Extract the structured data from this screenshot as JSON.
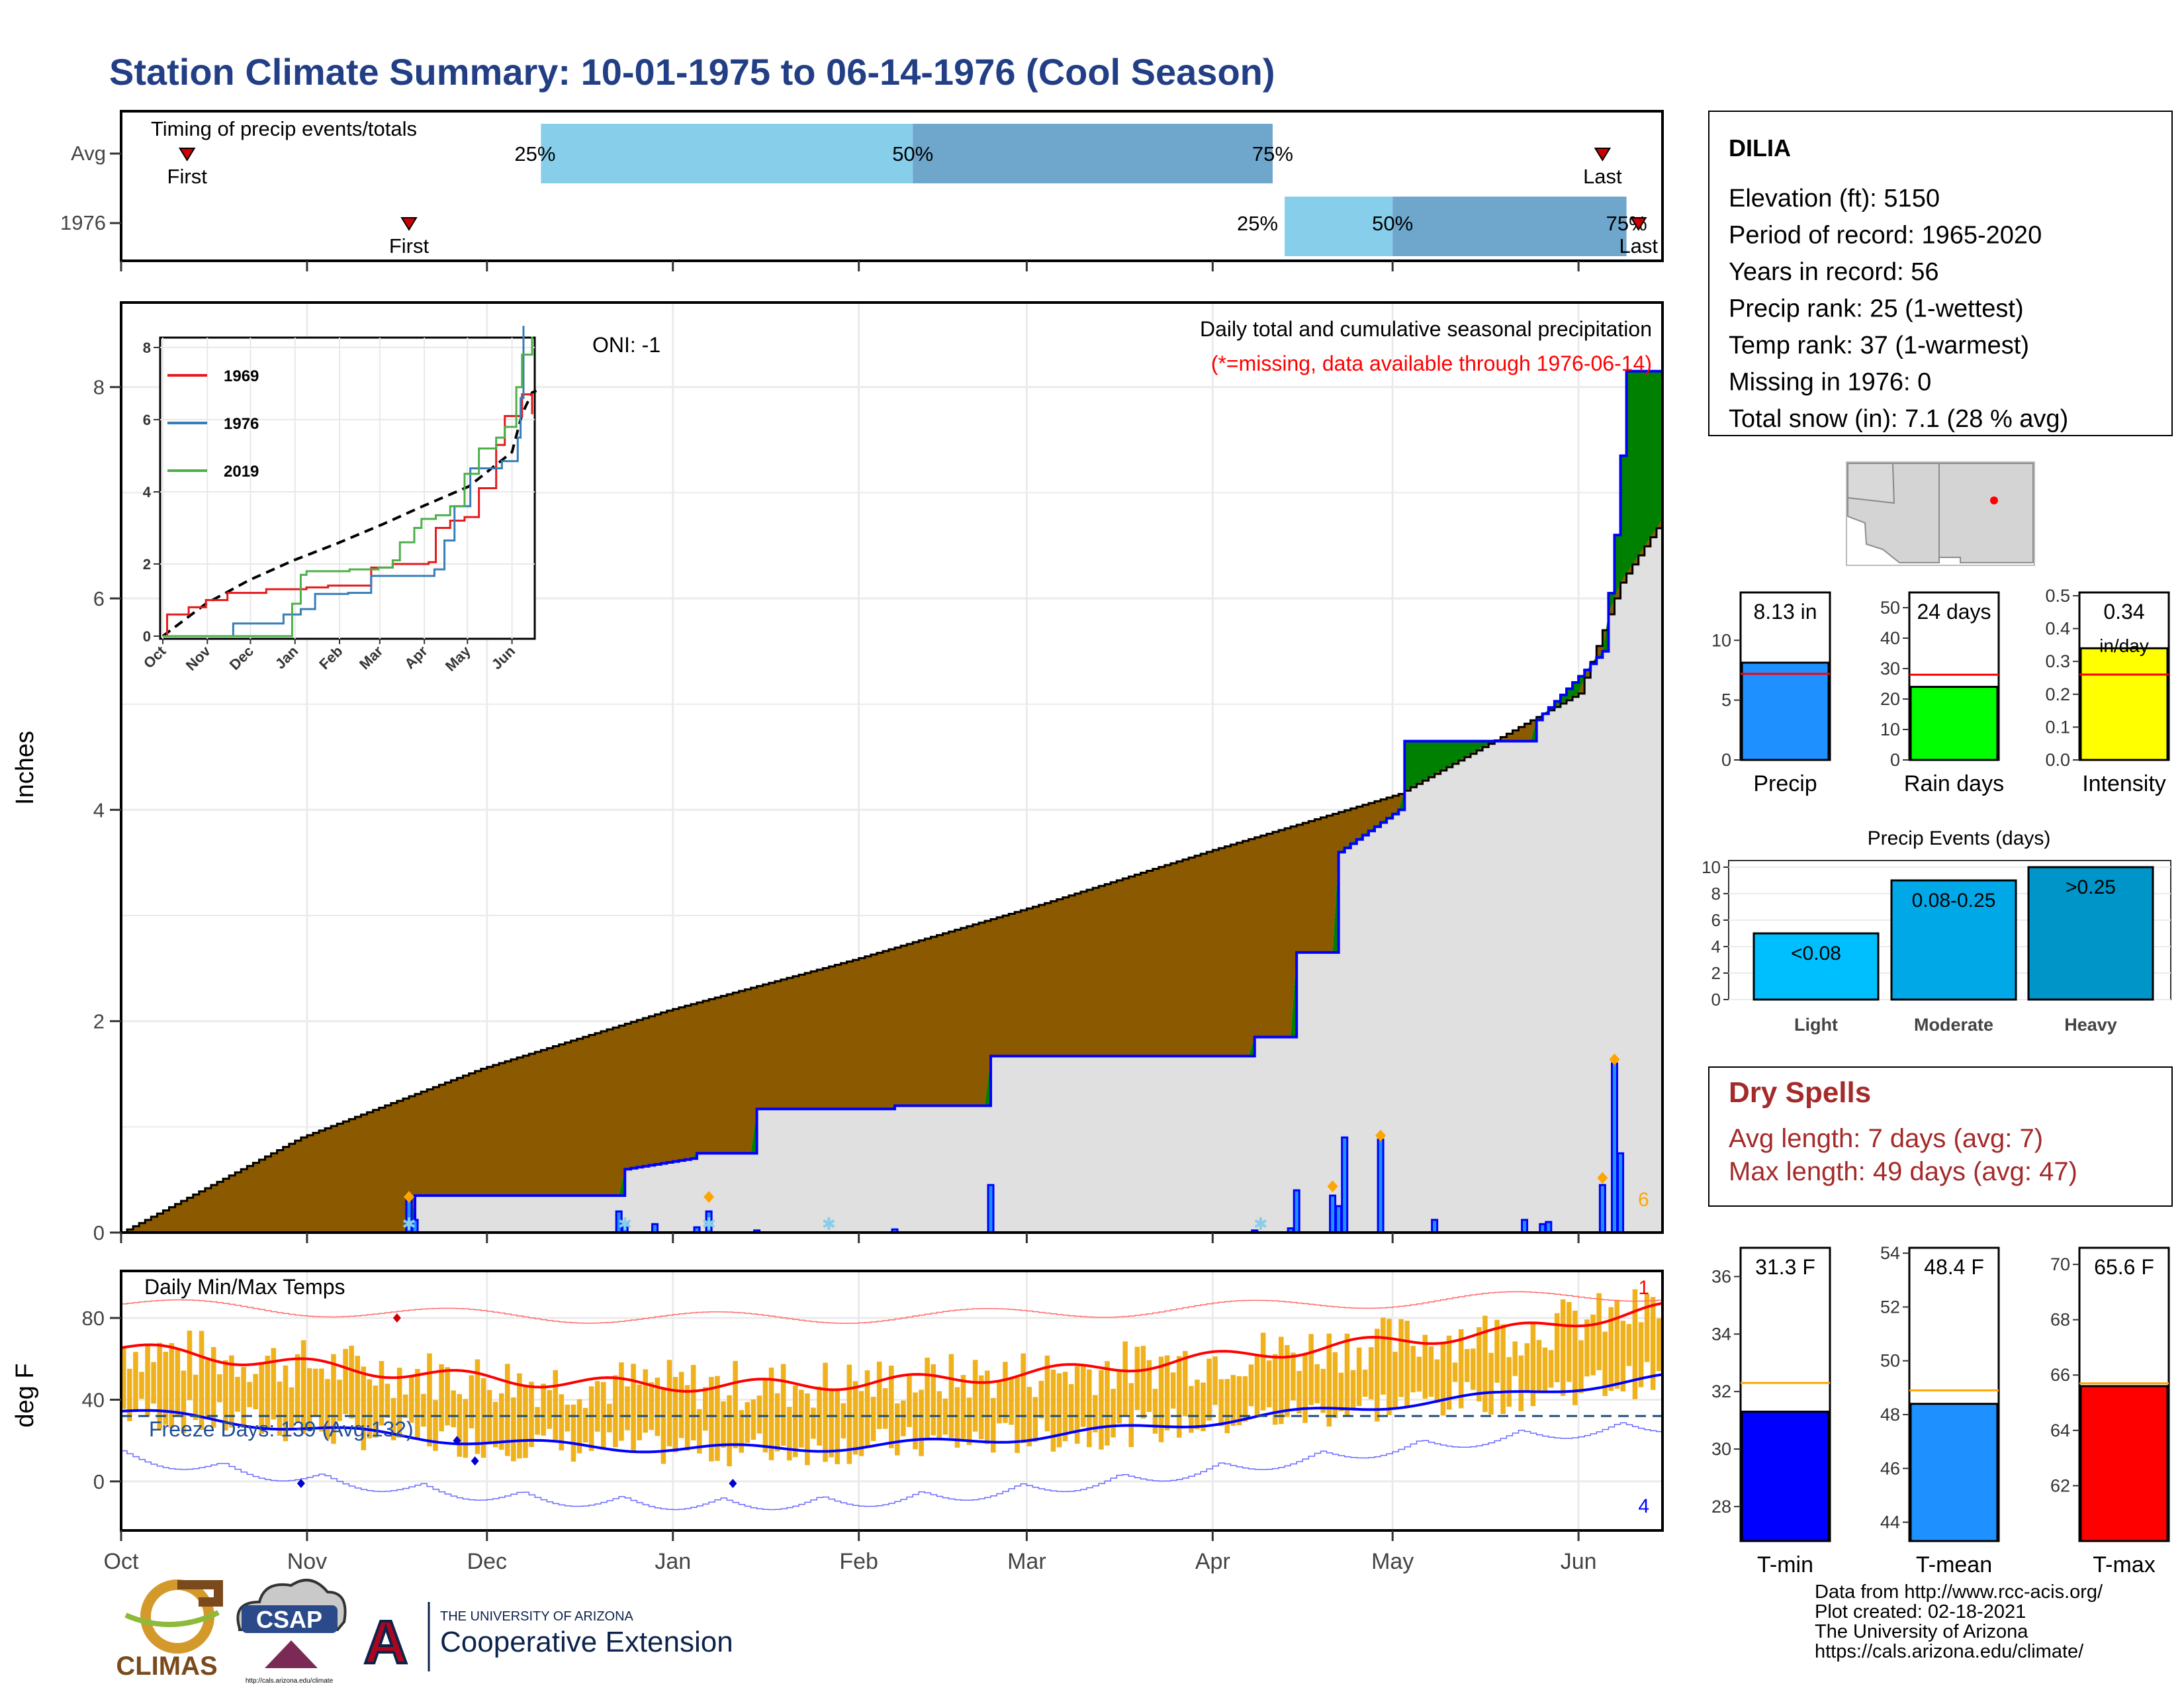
{
  "title": "Station Climate Summary: 10-01-1975 to 06-14-1976 (Cool Season)",
  "colors": {
    "title": "#223f86",
    "q1": "#87ceeb",
    "q2": "#6fa6cc",
    "brown": "#8b5a00",
    "green": "#008000",
    "gray": "#e0e0e0",
    "blue": "#0000ff",
    "red": "#ff0000",
    "orange": "#ffa500",
    "temp_bar": "#f0b21c",
    "dry_red": "#a52a2a"
  },
  "x_axis": {
    "months": [
      "Oct",
      "Nov",
      "Dec",
      "Jan",
      "Feb",
      "Mar",
      "Apr",
      "May",
      "Jun"
    ]
  },
  "timing": {
    "title": "Timing of precip events/totals",
    "rows": [
      {
        "label": "Avg",
        "first_label": "First",
        "last_label": "Last",
        "p25": "25%",
        "p50": "50%",
        "p75": "75%",
        "first_day": 11,
        "last_day": 247,
        "q25_day": 70,
        "q50_day": 132,
        "q75_day": 192
      },
      {
        "label": "1976",
        "first_label": "First",
        "last_label": "Last",
        "p25": "25%",
        "p50": "50%",
        "p75": "75%",
        "first_day": 48,
        "last_day": 253,
        "q25_day": 194,
        "q50_day": 212,
        "q75_day": 251
      }
    ]
  },
  "precip_panel": {
    "ylabel": "Inches",
    "ylim": [
      0,
      8.8
    ],
    "yticks": [
      0,
      2,
      4,
      6,
      8
    ],
    "oni": "ONI: -1",
    "caption": "Daily total and cumulative seasonal precipitation",
    "missing_note": "(*=missing, data available through 1976-06-14)",
    "count_label": "6",
    "normal_cumulative": [
      [
        0,
        0
      ],
      [
        30,
        0.9
      ],
      [
        60,
        1.55
      ],
      [
        91,
        2.1
      ],
      [
        122,
        2.58
      ],
      [
        153,
        3.1
      ],
      [
        182,
        3.62
      ],
      [
        213,
        4.15
      ],
      [
        243,
        5.1
      ],
      [
        250,
        6.15
      ],
      [
        257,
        6.75
      ],
      [
        260,
        6.8
      ]
    ],
    "observed_cumulative": [
      [
        0,
        0
      ],
      [
        48,
        0
      ],
      [
        49,
        0.35
      ],
      [
        83,
        0.35
      ],
      [
        84,
        0.6
      ],
      [
        95,
        0.7
      ],
      [
        96,
        0.75
      ],
      [
        105,
        0.75
      ],
      [
        106,
        1.17
      ],
      [
        128,
        1.17
      ],
      [
        129,
        1.2
      ],
      [
        144,
        1.2
      ],
      [
        145,
        1.67
      ],
      [
        188,
        1.67
      ],
      [
        189,
        1.85
      ],
      [
        195,
        1.85
      ],
      [
        196,
        2.65
      ],
      [
        202,
        2.65
      ],
      [
        203,
        3.6
      ],
      [
        213,
        4.0
      ],
      [
        214,
        4.65
      ],
      [
        235,
        4.65
      ],
      [
        236,
        4.85
      ],
      [
        247,
        5.5
      ],
      [
        249,
        6.6
      ],
      [
        250,
        7.35
      ],
      [
        251,
        8.15
      ],
      [
        260,
        8.15
      ]
    ],
    "daily_bars": [
      [
        48,
        0.35
      ],
      [
        49,
        0.12
      ],
      [
        83,
        0.2
      ],
      [
        84,
        0.08
      ],
      [
        89,
        0.08
      ],
      [
        96,
        0.05
      ],
      [
        98,
        0.2
      ],
      [
        106,
        0.02
      ],
      [
        129,
        0.03
      ],
      [
        145,
        0.45
      ],
      [
        189,
        0.02
      ],
      [
        195,
        0.04
      ],
      [
        196,
        0.4
      ],
      [
        202,
        0.35
      ],
      [
        203,
        0.25
      ],
      [
        204,
        0.9
      ],
      [
        210,
        0.88
      ],
      [
        219,
        0.12
      ],
      [
        234,
        0.12
      ],
      [
        237,
        0.08
      ],
      [
        238,
        0.1
      ],
      [
        247,
        0.45
      ],
      [
        249,
        1.6
      ],
      [
        250,
        0.75
      ]
    ],
    "event_markers": [
      [
        48,
        0.3
      ],
      [
        98,
        0.3
      ],
      [
        202,
        0.4
      ],
      [
        210,
        0.88
      ],
      [
        247,
        0.48
      ],
      [
        249,
        1.6
      ]
    ],
    "snow_markers": [
      48,
      84,
      98,
      118,
      190
    ],
    "inset": {
      "yticks": [
        0,
        2,
        4,
        6,
        8
      ],
      "months": [
        "Oct",
        "Nov",
        "Dec",
        "Jan",
        "Feb",
        "Mar",
        "Apr",
        "May",
        "Jun"
      ],
      "legend": [
        "1969",
        "1976",
        "2019"
      ]
    }
  },
  "temp_panel": {
    "title": "Daily Min/Max Temps",
    "ylabel": "deg F",
    "ylim": [
      -24,
      103
    ],
    "yticks": [
      0,
      40,
      80
    ],
    "freeze_label": "Freeze Days: 139 (Avg:132)",
    "freeze_line": 32,
    "max_count_label": "1",
    "min_count_label": "4"
  },
  "station": {
    "name": "DILIA",
    "lines": [
      "Elevation (ft): 5150",
      "Period of record: 1965-2020",
      "Years in record: 56",
      "Precip rank: 25 (1-wettest)",
      "Temp rank: 37 (1-warmest)",
      "Missing in 1976: 0",
      "Total snow (in): 7.1 (28 % avg)"
    ]
  },
  "summary_bars": [
    {
      "label": "Precip",
      "value_label": "8.13 in",
      "value": 8.13,
      "avg": 7.2,
      "ymax": 14,
      "yticks": [
        0,
        5,
        10
      ],
      "color": "#1e90ff"
    },
    {
      "label": "Rain days",
      "value_label": "24 days",
      "value": 24,
      "avg": 28,
      "ymax": 55,
      "yticks": [
        0,
        10,
        20,
        30,
        40,
        50
      ],
      "color": "#00ff00"
    },
    {
      "label": "Intensity",
      "value_label": "0.34",
      "value_label2": "in/day",
      "value": 0.34,
      "avg": 0.26,
      "ymax": 0.51,
      "yticks": [
        0.0,
        0.1,
        0.2,
        0.3,
        0.4,
        0.5
      ],
      "color": "#ffff00"
    }
  ],
  "events": {
    "title": "Precip Events (days)",
    "ymax": 10.5,
    "yticks": [
      0,
      2,
      4,
      6,
      8,
      10
    ],
    "bars": [
      {
        "label": "Light",
        "value": 5,
        "bar_label": "<0.08",
        "color": "#00bfff"
      },
      {
        "label": "Moderate",
        "value": 9,
        "bar_label": "0.08-0.25",
        "color": "#00a8e8"
      },
      {
        "label": "Heavy",
        "value": 10,
        "bar_label": ">0.25",
        "color": "#0095c8"
      }
    ]
  },
  "dry_spells": {
    "title": "Dry Spells",
    "avg": "Avg length: 7 days (avg: 7)",
    "max": "Max length: 49 days (avg: 47)"
  },
  "temp_bars": [
    {
      "label": "T-min",
      "value_label": "31.3 F",
      "value": 31.3,
      "avg": 32.3,
      "ymin": 26.8,
      "ymax": 37.0,
      "yticks": [
        28,
        30,
        32,
        34,
        36
      ],
      "color": "#0000ff"
    },
    {
      "label": "T-mean",
      "value_label": "48.4 F",
      "value": 48.4,
      "avg": 48.9,
      "ymin": 43.3,
      "ymax": 54.2,
      "yticks": [
        44,
        46,
        48,
        50,
        52,
        54
      ],
      "color": "#1e90ff"
    },
    {
      "label": "T-max",
      "value_label": "65.6 F",
      "value": 65.6,
      "avg": 65.7,
      "ymin": 60.0,
      "ymax": 70.6,
      "yticks": [
        62,
        64,
        66,
        68,
        70
      ],
      "color": "#ff0000"
    }
  ],
  "logos": {
    "climas": "CLIMAS",
    "csap": "CSAP",
    "csap_url": "http://cals.arizona.edu/climate",
    "ua_top": "THE UNIVERSITY OF ARIZONA",
    "ua_bottom": "Cooperative Extension",
    "ua_letter": "A"
  },
  "footer": [
    "Data from http://www.rcc-acis.org/",
    "Plot created: 02-18-2021",
    "The University of Arizona",
    "https://cals.arizona.edu/climate/"
  ]
}
